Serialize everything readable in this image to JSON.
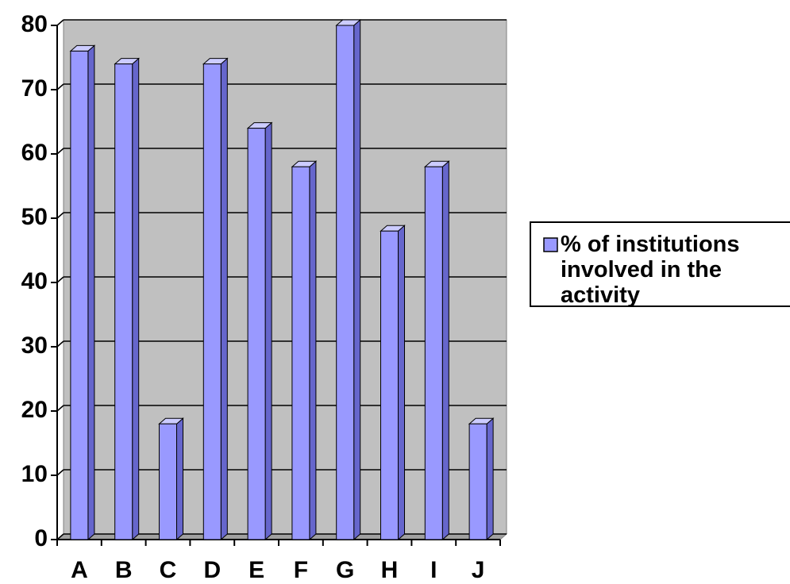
{
  "chart_data": {
    "type": "bar",
    "categories": [
      "A",
      "B",
      "C",
      "D",
      "E",
      "F",
      "G",
      "H",
      "I",
      "J"
    ],
    "series": [
      {
        "name": "% of institutions involved in the activity",
        "color": "#9999ff",
        "values": [
          76,
          74,
          18,
          74,
          64,
          58,
          80,
          48,
          58,
          18
        ]
      }
    ],
    "ylim": [
      0,
      80
    ],
    "yticks": [
      0,
      10,
      20,
      30,
      40,
      50,
      60,
      70,
      80
    ],
    "grid": true,
    "legend": "right"
  }
}
